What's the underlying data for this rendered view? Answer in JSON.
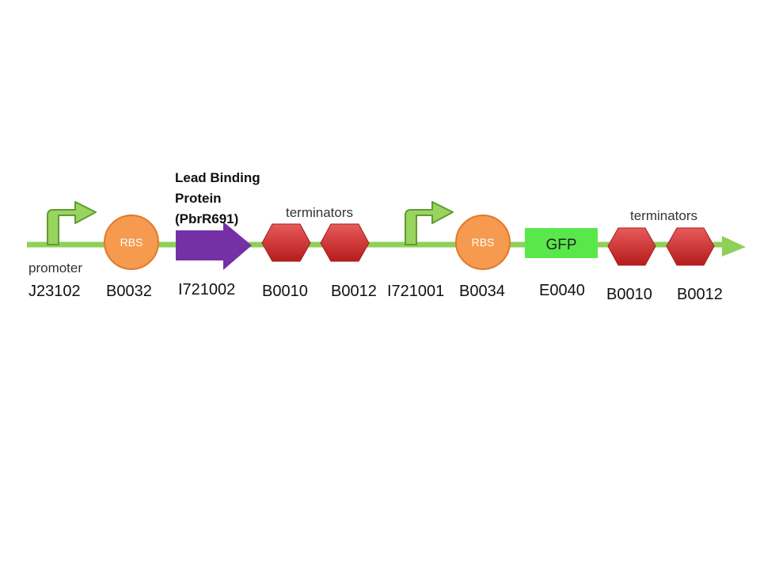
{
  "colors": {
    "backbone": "#8ed05a",
    "promoter_fill": "#9ad45f",
    "promoter_stroke": "#5f9c33",
    "rbs_fill": "#f59a4e",
    "rbs_stroke": "#e07a2a",
    "cds": "#7530a6",
    "terminator_top": "#e85a5a",
    "terminator_bottom": "#b61c1c",
    "gfp_box": "#58e84a"
  },
  "parts": [
    {
      "id": "promoter-1",
      "type": "promoter",
      "label": "promoter",
      "code": "J23102"
    },
    {
      "id": "rbs-1",
      "type": "rbs",
      "label": "RBS",
      "code": "B0032"
    },
    {
      "id": "cds-1",
      "type": "cds",
      "label_lines": [
        "Lead Binding",
        "Protein",
        "(PbrR691)"
      ],
      "code": "I721002"
    },
    {
      "id": "terminator-1",
      "type": "terminator",
      "code": "B0010"
    },
    {
      "id": "terminator-2",
      "type": "terminator",
      "code": "B0012"
    },
    {
      "id": "promoter-2",
      "type": "promoter",
      "code": "I721001"
    },
    {
      "id": "rbs-2",
      "type": "rbs",
      "label": "RBS",
      "code": "B0034"
    },
    {
      "id": "gfp",
      "type": "reporter",
      "label": "GFP",
      "code": "E0040"
    },
    {
      "id": "terminator-3",
      "type": "terminator",
      "code": "B0010"
    },
    {
      "id": "terminator-4",
      "type": "terminator",
      "code": "B0012"
    }
  ],
  "group_labels": {
    "terminators_1": "terminators",
    "terminators_2": "terminators"
  }
}
